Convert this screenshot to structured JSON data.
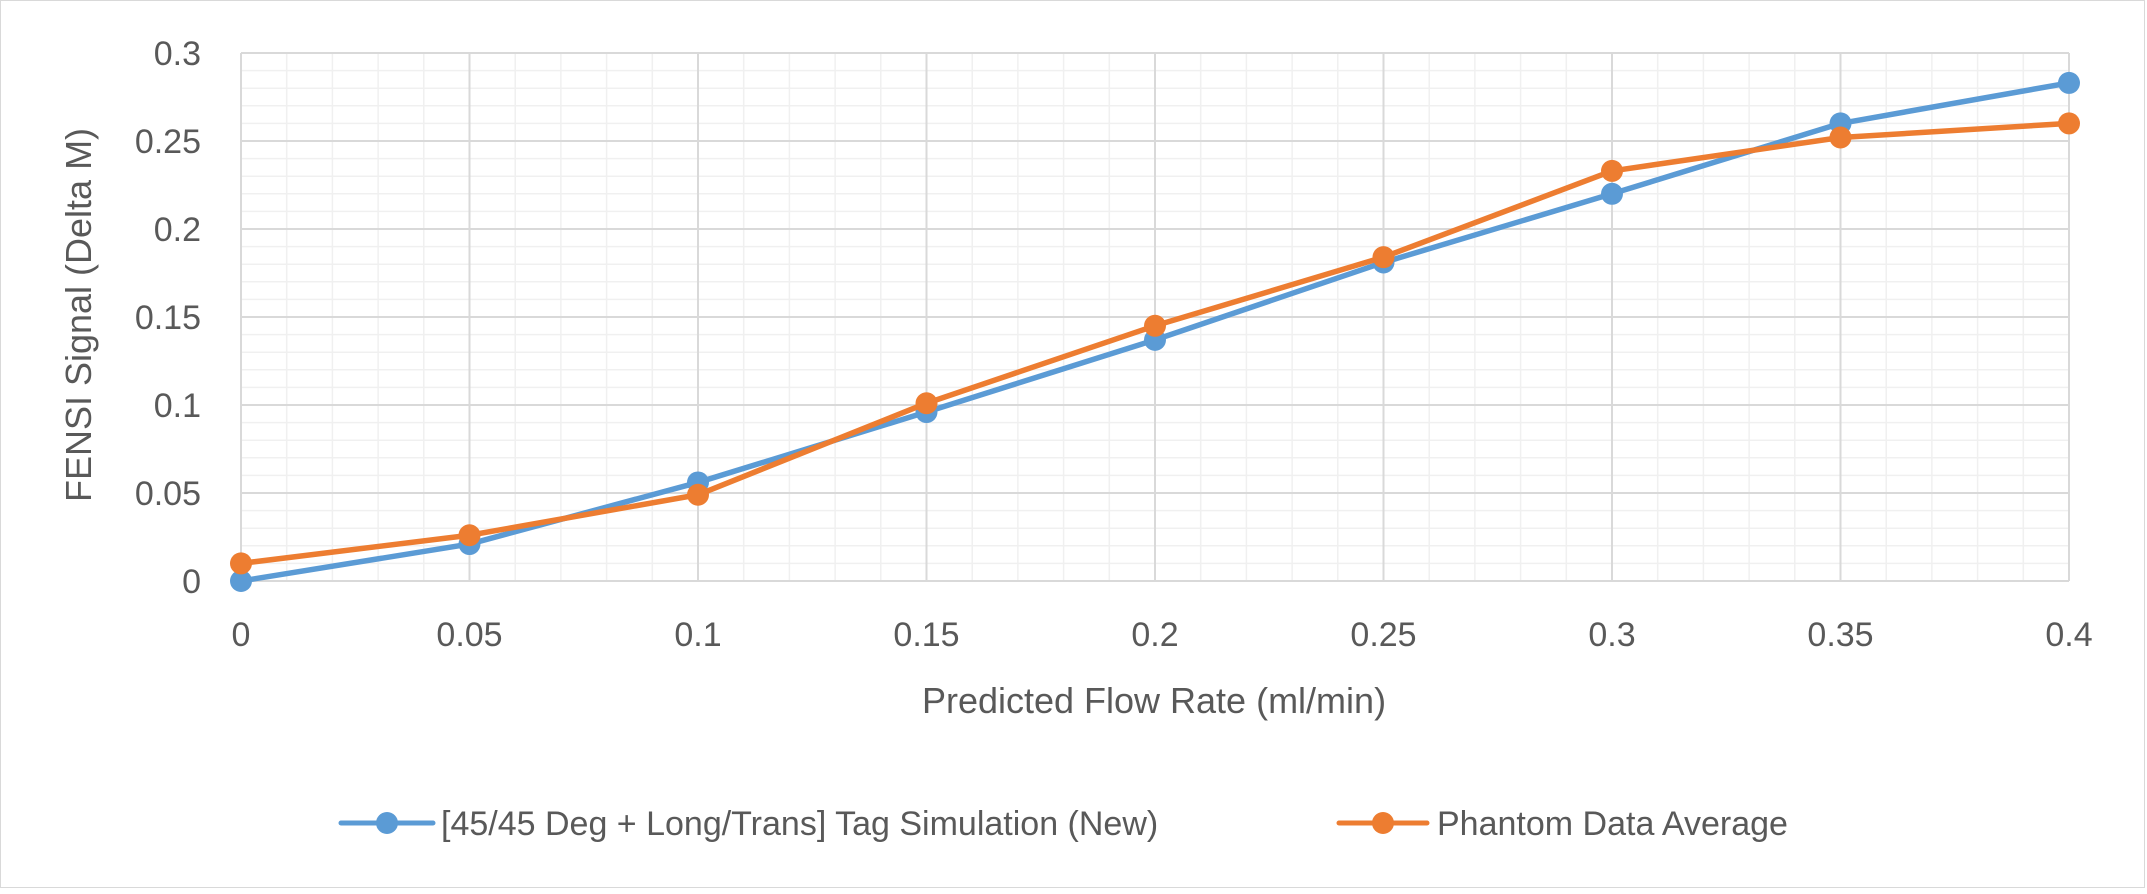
{
  "chart_data": {
    "type": "line",
    "title": "",
    "xlabel": "Predicted Flow Rate (ml/min)",
    "ylabel": "FENSI Signal (Delta M)",
    "xlim": [
      0,
      0.4
    ],
    "ylim": [
      0,
      0.3
    ],
    "x_ticks": [
      "0",
      "0.05",
      "0.1",
      "0.15",
      "0.2",
      "0.25",
      "0.3",
      "0.35",
      "0.4"
    ],
    "y_ticks": [
      "0",
      "0.05",
      "0.1",
      "0.15",
      "0.2",
      "0.25",
      "0.3"
    ],
    "x": [
      0,
      0.05,
      0.1,
      0.15,
      0.2,
      0.25,
      0.3,
      0.35,
      0.4
    ],
    "grid": "major-and-minor",
    "legend_position": "bottom",
    "series": [
      {
        "name": "[45/45 Deg + Long/Trans] Tag Simulation (New)",
        "color": "#5B9BD5",
        "values": [
          0.0,
          0.021,
          0.056,
          0.096,
          0.137,
          0.181,
          0.22,
          0.26,
          0.283
        ]
      },
      {
        "name": "Phantom Data Average",
        "color": "#ED7D31",
        "values": [
          0.01,
          0.026,
          0.049,
          0.101,
          0.145,
          0.184,
          0.233,
          0.252,
          0.26
        ]
      }
    ]
  }
}
